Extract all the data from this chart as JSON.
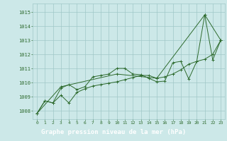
{
  "title": "Graphe pression niveau de la mer (hPa)",
  "x_ticks": [
    0,
    1,
    2,
    3,
    4,
    5,
    6,
    7,
    8,
    9,
    10,
    11,
    12,
    13,
    14,
    15,
    16,
    17,
    18,
    19,
    20,
    21,
    22,
    23
  ],
  "ylim": [
    1007.4,
    1015.6
  ],
  "yticks": [
    1008,
    1009,
    1010,
    1011,
    1012,
    1013,
    1014,
    1015
  ],
  "line1_x": [
    0,
    1,
    2,
    3,
    4,
    5,
    6,
    7,
    8,
    9,
    10,
    11,
    12,
    13,
    14,
    15,
    16,
    17,
    18,
    19,
    20,
    21,
    22,
    23
  ],
  "line1_y": [
    1007.8,
    1008.7,
    1008.55,
    1009.6,
    1009.85,
    1009.5,
    1009.7,
    1010.4,
    1010.5,
    1010.6,
    1011.0,
    1011.0,
    1010.6,
    1010.55,
    1010.3,
    1010.05,
    1010.1,
    1011.4,
    1011.5,
    1010.25,
    1011.5,
    1014.8,
    1011.6,
    1013.0
  ],
  "line2_x": [
    0,
    1,
    2,
    3,
    4,
    5,
    6,
    7,
    8,
    9,
    10,
    11,
    12,
    13,
    14,
    15,
    16,
    17,
    18,
    19,
    20,
    21,
    22,
    23
  ],
  "line2_y": [
    1007.8,
    1008.7,
    1008.55,
    1009.1,
    1008.55,
    1009.3,
    1009.55,
    1009.75,
    1009.85,
    1009.95,
    1010.05,
    1010.2,
    1010.35,
    1010.5,
    1010.5,
    1010.3,
    1010.4,
    1010.6,
    1010.9,
    1011.3,
    1011.5,
    1011.65,
    1012.0,
    1013.0
  ],
  "line3_x": [
    0,
    3,
    10,
    15,
    21,
    23
  ],
  "line3_y": [
    1007.8,
    1009.7,
    1010.6,
    1010.3,
    1014.8,
    1013.0
  ],
  "line_color": "#2d6a2d",
  "bg_color": "#cce8e8",
  "grid_color": "#a0c8c8",
  "title_bg": "#2d6a2d",
  "title_fg": "#ffffff"
}
